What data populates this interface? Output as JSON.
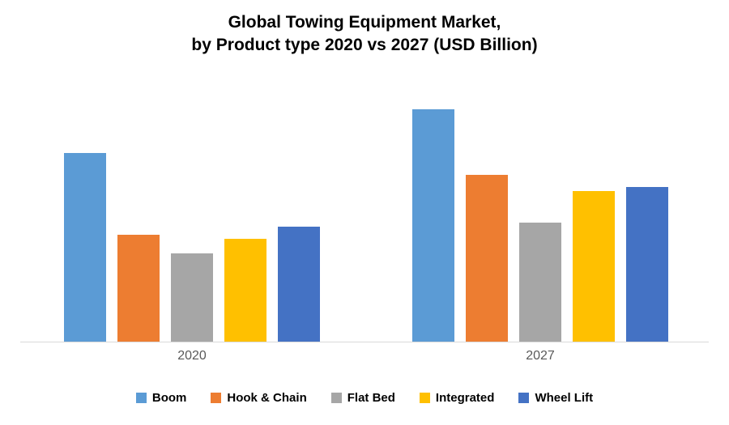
{
  "title": {
    "line1": "Global Towing Equipment Market,",
    "line2": "by Product type 2020 vs 2027 (USD Billion)"
  },
  "chart_data": {
    "type": "bar",
    "title": "Global Towing Equipment Market, by Product type 2020 vs 2027 (USD Billion)",
    "categories": [
      "2020",
      "2027"
    ],
    "series": [
      {
        "name": "Boom",
        "color": "#5B9BD5",
        "values": [
          2.24,
          2.76
        ]
      },
      {
        "name": "Hook & Chain",
        "color": "#ED7D31",
        "values": [
          1.27,
          1.98
        ]
      },
      {
        "name": "Flat Bed",
        "color": "#A6A6A6",
        "values": [
          1.05,
          1.41
        ]
      },
      {
        "name": "Integrated",
        "color": "#FFC000",
        "values": [
          1.22,
          1.79
        ]
      },
      {
        "name": "Wheel Lift",
        "color": "#4472C4",
        "values": [
          1.37,
          1.84
        ]
      }
    ],
    "xlabel": "",
    "ylabel": "",
    "ylim": [
      0,
      3
    ],
    "grid": false,
    "legend_position": "bottom",
    "axis_line_color": "#D9D9D9"
  }
}
